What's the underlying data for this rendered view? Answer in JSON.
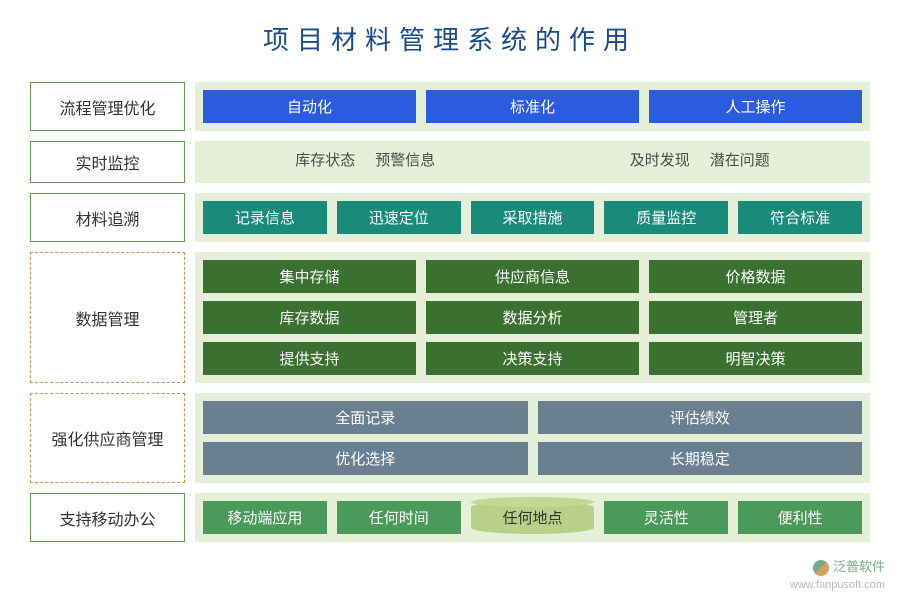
{
  "title": "项目材料管理系统的作用",
  "colors": {
    "title_text": "#1a4a8a",
    "label_border_orange": "#d89050",
    "label_border_green": "#6a9a5a",
    "label_bg": "#ffffff",
    "label_text": "#333333",
    "content_bg": "#e6f0d8",
    "pill_blue_bg": "#2b5ce0",
    "pill_blue_text": "#ffffff",
    "pill_teal_bg": "#1a8a7a",
    "pill_teal_text": "#ffffff",
    "pill_darkgreen_bg": "#3a7030",
    "pill_darkgreen_text": "#ffffff",
    "pill_slate_bg": "#6a8090",
    "pill_slate_text": "#ffffff",
    "pill_green_bg": "#4a9a5a",
    "pill_green_text": "#ffffff",
    "pill_olive_bg": "#b8d088",
    "pill_olive_text": "#333333",
    "text_plain": "#4a4a4a"
  },
  "rows": [
    {
      "label": "流程管理优化",
      "label_border": "#6a9a5a",
      "label_style": "solid",
      "content_bg": "#e6f0d8",
      "lines": [
        {
          "type": "pills",
          "items": [
            {
              "text": "自动化",
              "bg": "#2b5ce0",
              "fg": "#ffffff"
            },
            {
              "text": "标准化",
              "bg": "#2b5ce0",
              "fg": "#ffffff"
            },
            {
              "text": "人工操作",
              "bg": "#2b5ce0",
              "fg": "#ffffff"
            }
          ]
        }
      ]
    },
    {
      "label": "实时监控",
      "label_border": "#6a9a5a",
      "label_style": "solid",
      "content_bg": "#e6f0d8",
      "lines": [
        {
          "type": "textgroups",
          "groups": [
            [
              "库存状态",
              "预警信息"
            ],
            [
              "及时发现",
              "潜在问题"
            ]
          ]
        }
      ]
    },
    {
      "label": "材料追溯",
      "label_border": "#6a9a5a",
      "label_style": "solid",
      "content_bg": "#e6f0d8",
      "lines": [
        {
          "type": "pills",
          "items": [
            {
              "text": "记录信息",
              "bg": "#1a8a7a",
              "fg": "#ffffff"
            },
            {
              "text": "迅速定位",
              "bg": "#1a8a7a",
              "fg": "#ffffff"
            },
            {
              "text": "采取措施",
              "bg": "#1a8a7a",
              "fg": "#ffffff"
            },
            {
              "text": "质量监控",
              "bg": "#1a8a7a",
              "fg": "#ffffff"
            },
            {
              "text": "符合标准",
              "bg": "#1a8a7a",
              "fg": "#ffffff"
            }
          ]
        }
      ]
    },
    {
      "label": "数据管理",
      "label_border": "#d89050",
      "label_style": "dashed",
      "content_bg": "#e6f0d8",
      "lines": [
        {
          "type": "pills",
          "items": [
            {
              "text": "集中存储",
              "bg": "#3a7030",
              "fg": "#ffffff"
            },
            {
              "text": "供应商信息",
              "bg": "#3a7030",
              "fg": "#ffffff"
            },
            {
              "text": "价格数据",
              "bg": "#3a7030",
              "fg": "#ffffff"
            }
          ]
        },
        {
          "type": "pills",
          "items": [
            {
              "text": "库存数据",
              "bg": "#3a7030",
              "fg": "#ffffff"
            },
            {
              "text": "数据分析",
              "bg": "#3a7030",
              "fg": "#ffffff"
            },
            {
              "text": "管理者",
              "bg": "#3a7030",
              "fg": "#ffffff"
            }
          ]
        },
        {
          "type": "pills",
          "items": [
            {
              "text": "提供支持",
              "bg": "#3a7030",
              "fg": "#ffffff"
            },
            {
              "text": "决策支持",
              "bg": "#3a7030",
              "fg": "#ffffff"
            },
            {
              "text": "明智决策",
              "bg": "#3a7030",
              "fg": "#ffffff"
            }
          ]
        }
      ]
    },
    {
      "label": "强化供应商管理",
      "label_border": "#d89050",
      "label_style": "dashed",
      "content_bg": "#e6f0d8",
      "lines": [
        {
          "type": "pills",
          "items": [
            {
              "text": "全面记录",
              "bg": "#6a8090",
              "fg": "#ffffff"
            },
            {
              "text": "评估绩效",
              "bg": "#6a8090",
              "fg": "#ffffff"
            }
          ]
        },
        {
          "type": "pills",
          "items": [
            {
              "text": "优化选择",
              "bg": "#6a8090",
              "fg": "#ffffff"
            },
            {
              "text": "长期稳定",
              "bg": "#6a8090",
              "fg": "#ffffff"
            }
          ]
        }
      ]
    },
    {
      "label": "支持移动办公",
      "label_border": "#6a9a5a",
      "label_style": "solid",
      "content_bg": "#e6f0d8",
      "lines": [
        {
          "type": "pills",
          "items": [
            {
              "text": "移动端应用",
              "bg": "#4a9a5a",
              "fg": "#ffffff"
            },
            {
              "text": "任何时间",
              "bg": "#4a9a5a",
              "fg": "#ffffff"
            },
            {
              "text": "任何地点",
              "bg": "#b8d088",
              "fg": "#333333",
              "shape": "cylinder"
            },
            {
              "text": "灵活性",
              "bg": "#4a9a5a",
              "fg": "#ffffff"
            },
            {
              "text": "便利性",
              "bg": "#4a9a5a",
              "fg": "#ffffff"
            }
          ]
        }
      ]
    }
  ],
  "watermark": {
    "brand": "泛普软件",
    "url": "www.fanpusoft.com"
  }
}
